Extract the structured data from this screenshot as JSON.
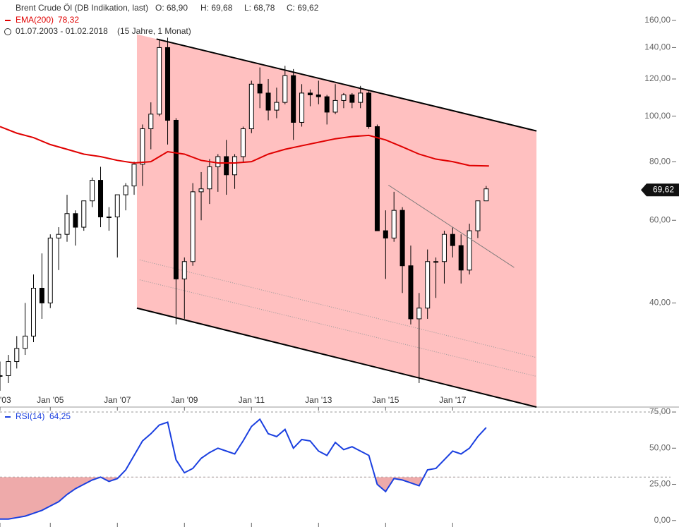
{
  "header": {
    "title": "Brent Crude Öl (DB Indikation, last)",
    "quote": [
      "O: 68,90",
      "H: 69,68",
      "L: 68,78",
      "C: 69,62"
    ],
    "ema_label": "EMA(200)",
    "ema_value": "78,32",
    "range": "01.07.2003 - 01.02.2018",
    "span": "(15 Jahre, 1 Monat)"
  },
  "chart_data": [
    {
      "type": "candlestick",
      "log_scale": true,
      "x": [
        "2003-07",
        "2003-10",
        "2004-01",
        "2004-04",
        "2004-07",
        "2004-10",
        "2005-01",
        "2005-04",
        "2005-07",
        "2005-10",
        "2006-01",
        "2006-04",
        "2006-07",
        "2006-10",
        "2007-01",
        "2007-04",
        "2007-07",
        "2007-10",
        "2008-01",
        "2008-04",
        "2008-07",
        "2008-10",
        "2009-01",
        "2009-04",
        "2009-07",
        "2009-10",
        "2010-01",
        "2010-04",
        "2010-07",
        "2010-10",
        "2011-01",
        "2011-04",
        "2011-07",
        "2011-10",
        "2012-01",
        "2012-04",
        "2012-07",
        "2012-10",
        "2013-01",
        "2013-04",
        "2013-07",
        "2013-10",
        "2014-01",
        "2014-04",
        "2014-07",
        "2014-10",
        "2015-01",
        "2015-04",
        "2015-07",
        "2015-10",
        "2016-01",
        "2016-04",
        "2016-07",
        "2016-10",
        "2017-01",
        "2017-04",
        "2017-07",
        "2017-10",
        "2018-01"
      ],
      "open": [
        28,
        28,
        30,
        32,
        34,
        43,
        40,
        55,
        56,
        62,
        58,
        66,
        73,
        61,
        61,
        68,
        71,
        79,
        94,
        101,
        140,
        98,
        45,
        49,
        69,
        70,
        78,
        82,
        75,
        82,
        94,
        117,
        112,
        103,
        107,
        122,
        97,
        112,
        111,
        110,
        102,
        108,
        111,
        107,
        112,
        95,
        57,
        55,
        63,
        48,
        37,
        39,
        49,
        49,
        56,
        53,
        47,
        57,
        66
      ],
      "high": [
        30,
        31,
        34,
        40,
        46,
        51,
        56,
        58,
        68,
        63,
        66,
        74,
        78,
        64,
        68,
        72,
        80,
        96,
        107,
        146,
        147,
        99,
        50,
        72,
        76,
        81,
        83,
        89,
        83,
        95,
        119,
        127,
        120,
        115,
        128,
        126,
        117,
        114,
        119,
        111,
        117,
        112,
        112,
        116,
        113,
        96,
        63,
        69,
        64,
        53,
        42,
        52,
        50,
        57,
        58,
        56,
        59,
        66,
        71
      ],
      "low": [
        26,
        27,
        29,
        31,
        33,
        37,
        39,
        47,
        54,
        53,
        57,
        64,
        58,
        57,
        50,
        63,
        68,
        71,
        85,
        100,
        87,
        36,
        37,
        48,
        60,
        65,
        69,
        68,
        70,
        80,
        92,
        104,
        98,
        99,
        106,
        89,
        95,
        105,
        106,
        96,
        101,
        104,
        104,
        104,
        94,
        57,
        45,
        54,
        42,
        36,
        27,
        37,
        41,
        44,
        50,
        44,
        46,
        55,
        66
      ],
      "close": [
        28,
        30,
        32,
        34,
        43,
        40,
        55,
        56,
        62,
        58,
        66,
        73,
        61,
        61,
        68,
        71,
        79,
        94,
        101,
        140,
        98,
        45,
        49,
        69,
        70,
        78,
        82,
        75,
        82,
        94,
        117,
        112,
        103,
        107,
        122,
        97,
        112,
        111,
        110,
        102,
        108,
        111,
        107,
        112,
        95,
        57,
        55,
        63,
        48,
        37,
        39,
        49,
        49,
        56,
        53,
        47,
        57,
        66,
        70
      ],
      "ema": {
        "color": "#e00000",
        "x": [
          "2003-07",
          "2004-01",
          "2004-07",
          "2005-01",
          "2005-07",
          "2006-01",
          "2006-07",
          "2007-01",
          "2007-07",
          "2008-01",
          "2008-07",
          "2009-01",
          "2009-07",
          "2010-01",
          "2010-07",
          "2011-01",
          "2011-07",
          "2012-01",
          "2012-07",
          "2013-01",
          "2013-07",
          "2014-01",
          "2014-07",
          "2015-01",
          "2015-07",
          "2016-01",
          "2016-07",
          "2017-01",
          "2017-07",
          "2018-02"
        ],
        "values": [
          95,
          92,
          90,
          87,
          85,
          83,
          82,
          80.5,
          79.5,
          80,
          84,
          83,
          80.5,
          79.5,
          79.5,
          80,
          83,
          85,
          86.5,
          88,
          89.5,
          90.5,
          91,
          89,
          86,
          83,
          81,
          80,
          78.5,
          78.32
        ]
      },
      "channel": {
        "color": "#ffc0c0",
        "upper": {
          "x": [
            "2008-03",
            "2019-07"
          ],
          "values": [
            146,
            93
          ]
        },
        "lower": {
          "x": [
            "2007-08",
            "2019-07"
          ],
          "values": [
            39,
            24
          ]
        },
        "dotted": [
          {
            "x": [
              "2007-09",
              "2019-07"
            ],
            "values": [
              49.4,
              30.6
            ]
          },
          {
            "x": [
              "2007-09",
              "2019-07"
            ],
            "values": [
              44.8,
              27.9
            ]
          }
        ]
      },
      "trendline": {
        "x": [
          "2015-02",
          "2018-11"
        ],
        "values": [
          71.3,
          47.6
        ]
      },
      "last_price": 69.62,
      "last_price_label": "69,62",
      "xlim": [
        "2003-07",
        "2023-10"
      ],
      "ylim": [
        24,
        176.8
      ],
      "xticks": [
        {
          "value": "2003-07",
          "label": "'03"
        },
        {
          "value": "2005-01",
          "label": "Jan '05"
        },
        {
          "value": "2007-01",
          "label": "Jan '07"
        },
        {
          "value": "2009-01",
          "label": "Jan '09"
        },
        {
          "value": "2011-01",
          "label": "Jan '11"
        },
        {
          "value": "2013-01",
          "label": "Jan '13"
        },
        {
          "value": "2015-01",
          "label": "Jan '15"
        },
        {
          "value": "2017-01",
          "label": "Jan '17"
        }
      ],
      "yticks": [
        {
          "value": 40,
          "label": "40,00"
        },
        {
          "value": 60,
          "label": "60,00"
        },
        {
          "value": 80,
          "label": "80,00"
        },
        {
          "value": 100,
          "label": "100,00"
        },
        {
          "value": 120,
          "label": "120,00"
        },
        {
          "value": 140,
          "label": "140,00"
        },
        {
          "value": 160,
          "label": "160,00"
        }
      ]
    },
    {
      "type": "line",
      "series": [
        {
          "name": "RSI(14)",
          "color": "#1a3fe0",
          "values": [
            1,
            1,
            2,
            3,
            5,
            7,
            10,
            13,
            18,
            22,
            25,
            28,
            30,
            27,
            29,
            35,
            45,
            55,
            60,
            66,
            68,
            42,
            33,
            36,
            43,
            47,
            50,
            48,
            46,
            55,
            65,
            70,
            60,
            58,
            63,
            50,
            56,
            55,
            48,
            45,
            54,
            49,
            51,
            48,
            45,
            25,
            20,
            29,
            28,
            26,
            24,
            35,
            36,
            42,
            48,
            46,
            50,
            58,
            64.25
          ],
          "value_labels": {
            "58": "64,25"
          }
        }
      ],
      "x": [
        "2003-07",
        "2003-10",
        "2004-01",
        "2004-04",
        "2004-07",
        "2004-10",
        "2005-01",
        "2005-04",
        "2005-07",
        "2005-10",
        "2006-01",
        "2006-04",
        "2006-07",
        "2006-10",
        "2007-01",
        "2007-04",
        "2007-07",
        "2007-10",
        "2008-01",
        "2008-04",
        "2008-07",
        "2008-10",
        "2009-01",
        "2009-04",
        "2009-07",
        "2009-10",
        "2010-01",
        "2010-04",
        "2010-07",
        "2010-10",
        "2011-01",
        "2011-04",
        "2011-07",
        "2011-10",
        "2012-01",
        "2012-04",
        "2012-07",
        "2012-10",
        "2013-01",
        "2013-04",
        "2013-07",
        "2013-10",
        "2014-01",
        "2014-04",
        "2014-07",
        "2014-10",
        "2015-01",
        "2015-04",
        "2015-07",
        "2015-10",
        "2016-01",
        "2016-04",
        "2016-07",
        "2016-10",
        "2017-01",
        "2017-04",
        "2017-07",
        "2017-10",
        "2018-01"
      ],
      "levels": [
        30,
        75
      ],
      "fill_color": "#eeaaaa",
      "xlim": [
        "2003-07",
        "2023-10"
      ],
      "ylim": [
        -4.5,
        75.5
      ],
      "yticks": [
        {
          "value": 0,
          "label": "0,00"
        },
        {
          "value": 25,
          "label": "25,00"
        },
        {
          "value": 50,
          "label": "50,00"
        },
        {
          "value": 75,
          "label": "75,00"
        }
      ]
    }
  ]
}
